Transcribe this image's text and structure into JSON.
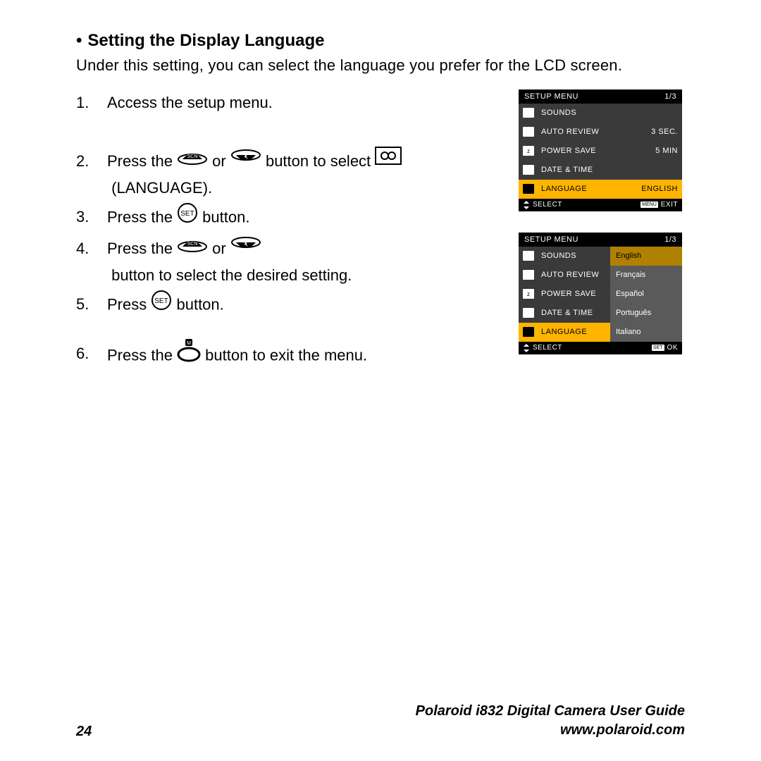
{
  "heading": "Setting the Display Language",
  "intro": "Under this setting, you can select the language you prefer for the LCD screen.",
  "steps": {
    "s1": "Access the setup menu.",
    "s2a": "Press the ",
    "s2b": " or ",
    "s2c": " button to select ",
    "s2d": " (LANGUAGE).",
    "s3a": "Press the ",
    "s3b": " button.",
    "s4a": "Press the ",
    "s4b": " or ",
    "s4c": " button to select the desired setting.",
    "s5a": "Press ",
    "s5b": " button.",
    "s6a": "Press the ",
    "s6b": " button to exit the menu."
  },
  "lcd1": {
    "title": "SETUP MENU",
    "page": "1/3",
    "rows": [
      {
        "icon": "speaker",
        "label": "SOUNDS",
        "val": ""
      },
      {
        "icon": "review",
        "label": "AUTO REVIEW",
        "val": "3 SEC."
      },
      {
        "icon": "power",
        "label": "POWER SAVE",
        "val": "5 MIN"
      },
      {
        "icon": "clock",
        "label": "DATE & TIME",
        "val": ""
      },
      {
        "icon": "lang",
        "label": "LANGUAGE",
        "val": "ENGLISH",
        "hl": true
      }
    ],
    "footerLeft": "SELECT",
    "footerRightBadge": "MENU",
    "footerRight": "EXIT"
  },
  "lcd2": {
    "title": "SETUP MENU",
    "page": "1/3",
    "rows": [
      {
        "icon": "speaker",
        "label": "SOUNDS"
      },
      {
        "icon": "review",
        "label": "AUTO REVIEW"
      },
      {
        "icon": "power",
        "label": "POWER SAVE"
      },
      {
        "icon": "clock",
        "label": "DATE & TIME"
      },
      {
        "icon": "lang",
        "label": "LANGUAGE",
        "hl": true
      }
    ],
    "options": [
      {
        "label": "English",
        "hl": true
      },
      {
        "label": "Français"
      },
      {
        "label": "Español"
      },
      {
        "label": "Português"
      },
      {
        "label": "Italiano"
      }
    ],
    "footerLeft": "SELECT",
    "footerRightBadge": "SET",
    "footerRight": "OK"
  },
  "footer": {
    "page": "24",
    "guide1": "Polaroid i832 Digital Camera User Guide",
    "guide2": "www.polaroid.com"
  },
  "colors": {
    "highlight": "#ffb400",
    "lcdBody": "#3a3a3a",
    "lcdOptCol": "#5a5a5a"
  }
}
